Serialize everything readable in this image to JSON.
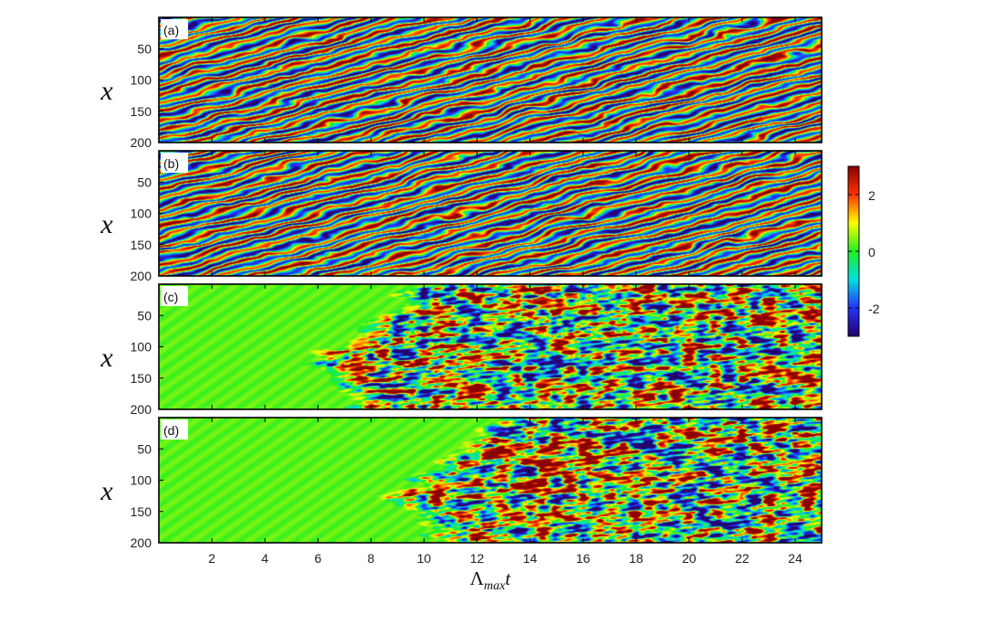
{
  "chart_data": {
    "type": "heatmap",
    "colormap": [
      "#26006b",
      "#2233ff",
      "#00e0e0",
      "#22ee22",
      "#ffff00",
      "#ff3300",
      "#8b0000"
    ],
    "x_axis": {
      "label_main": "Λ",
      "label_sub": "max",
      "label_var": "t",
      "range": [
        0,
        25
      ],
      "ticks": [
        2,
        4,
        6,
        8,
        10,
        12,
        14,
        16,
        18,
        20,
        22,
        24
      ]
    },
    "y_axis": {
      "label": "x",
      "range": [
        0,
        200
      ],
      "ticks": [
        50,
        100,
        150,
        200
      ],
      "inverted": true
    },
    "colorbar": {
      "range": [
        -3,
        3
      ],
      "ticks": [
        2,
        0,
        -2
      ]
    },
    "panels": [
      {
        "label": "(a)",
        "pattern": "stripes",
        "onset_t": 0
      },
      {
        "label": "(b)",
        "pattern": "stripes",
        "onset_t": 0
      },
      {
        "label": "(c)",
        "pattern": "turbulent",
        "onset_t": 5.5
      },
      {
        "label": "(d)",
        "pattern": "turbulent",
        "onset_t": 8.5
      }
    ]
  }
}
